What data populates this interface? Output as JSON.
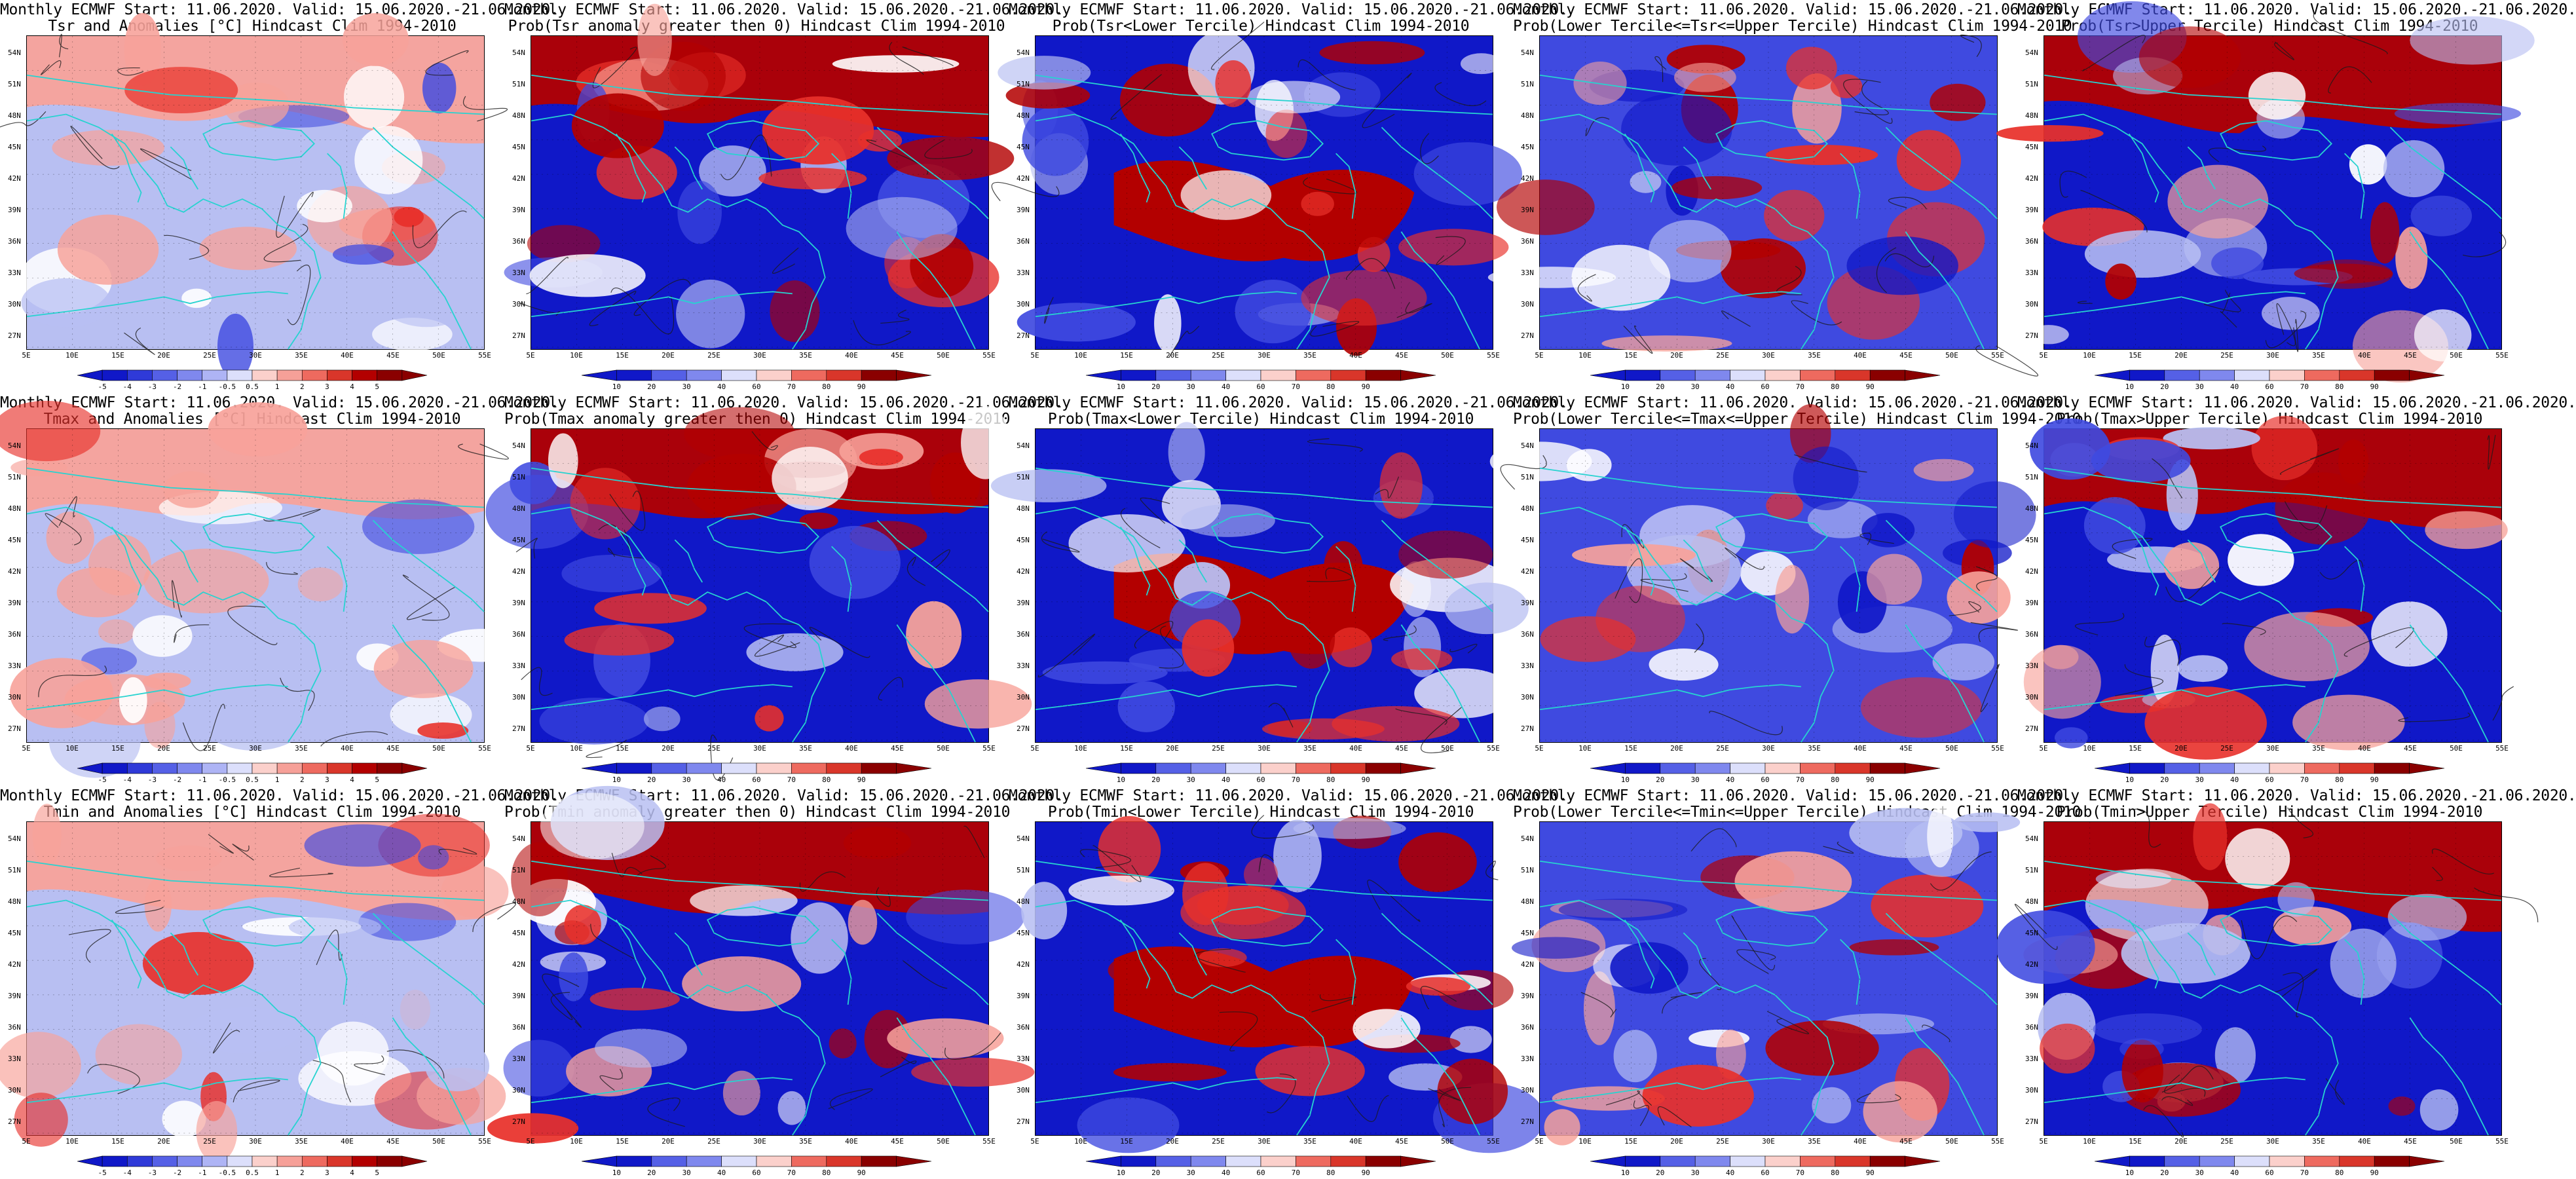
{
  "colors": {
    "red_dark": "#b30000",
    "red": "#e8302a",
    "red_light": "#f7a29a",
    "white": "#ffffff",
    "blue_light": "#b8bff2",
    "blue": "#3f4ae0",
    "blue_dark": "#1018c8",
    "coast": "#27d3d0",
    "contour": "#1a1a1a"
  },
  "grid_labels": {
    "lat": [
      "54N",
      "51N",
      "48N",
      "45N",
      "42N",
      "39N",
      "36N",
      "33N",
      "30N",
      "27N"
    ],
    "lon": [
      "5E",
      "10E",
      "15E",
      "20E",
      "25E",
      "30E",
      "35E",
      "40E",
      "45E",
      "50E",
      "55E"
    ]
  },
  "colorbars": {
    "anomaly": [
      "-5",
      "-4",
      "-3",
      "-2",
      "-1",
      "-0.5",
      "0.5",
      "1",
      "2",
      "3",
      "4",
      "5"
    ],
    "probability": [
      "10",
      "20",
      "30",
      "40",
      "60",
      "70",
      "80",
      "90"
    ]
  },
  "panels": [
    {
      "title_line1": "Monthly ECMWF Start: 11.06.2020. Valid: 15.06.2020.-21.06.2020.",
      "title_line2": "Tsr and Anomalies [°C] Hindcast Clim 1994-2010",
      "palette": "light",
      "cbar": "anomaly",
      "seed": 11
    },
    {
      "title_line1": "Monthly ECMWF Start: 11.06.2020. Valid: 15.06.2020.-21.06.2020.",
      "title_line2": "Prob(Tsr anomaly greater then 0) Hindcast Clim 1994-2010",
      "palette": "strong",
      "cbar": "probability",
      "seed": 12
    },
    {
      "title_line1": "Monthly ECMWF Start: 11.06.2020. Valid: 15.06.2020.-21.06.2020.",
      "title_line2": "Prob(Tsr<Lower Tercile) Hindcast Clim 1994-2010",
      "palette": "strong_inv",
      "cbar": "probability",
      "seed": 13
    },
    {
      "title_line1": "Monthly ECMWF Start: 11.06.2020. Valid: 15.06.2020.-21.06.2020.",
      "title_line2": "Prob(Lower Tercile<=Tsr<=Upper Tercile) Hindcast Clim 1994-2010",
      "palette": "mixed",
      "cbar": "probability",
      "seed": 14
    },
    {
      "title_line1": "Monthly ECMWF Start: 11.06.2020. Valid: 15.06.2020.-21.06.2020.",
      "title_line2": "Prob(Tsr>Upper Tercile) Hindcast Clim 1994-2010",
      "palette": "strong",
      "cbar": "probability",
      "seed": 15
    },
    {
      "title_line1": "Monthly ECMWF Start: 11.06.2020. Valid: 15.06.2020.-21.06.2020.",
      "title_line2": "Tmax and Anomalies [°C] Hindcast Clim 1994-2010",
      "palette": "light",
      "cbar": "anomaly",
      "seed": 21
    },
    {
      "title_line1": "Monthly ECMWF Start: 11.06.2020. Valid: 15.06.2020.-21.06.2020.",
      "title_line2": "Prob(Tmax anomaly greater then 0) Hindcast Clim 1994-2010",
      "palette": "strong",
      "cbar": "probability",
      "seed": 22
    },
    {
      "title_line1": "Monthly ECMWF Start: 11.06.2020. Valid: 15.06.2020.-21.06.2020.",
      "title_line2": "Prob(Tmax<Lower Tercile) Hindcast Clim 1994-2010",
      "palette": "strong_inv",
      "cbar": "probability",
      "seed": 23
    },
    {
      "title_line1": "Monthly ECMWF Start: 11.06.2020. Valid: 15.06.2020.-21.06.2020.",
      "title_line2": "Prob(Lower Tercile<=Tmax<=Upper Tercile) Hindcast Clim 1994-2010",
      "palette": "mixed",
      "cbar": "probability",
      "seed": 24
    },
    {
      "title_line1": "Monthly ECMWF Start: 11.06.2020. Valid: 15.06.2020.-21.06.2020.",
      "title_line2": "Prob(Tmax>Upper Tercile) Hindcast Clim 1994-2010",
      "palette": "strong",
      "cbar": "probability",
      "seed": 25
    },
    {
      "title_line1": "Monthly ECMWF Start: 11.06.2020. Valid: 15.06.2020.-21.06.2020.",
      "title_line2": "Tmin and Anomalies [°C] Hindcast Clim 1994-2010",
      "palette": "light",
      "cbar": "anomaly",
      "seed": 31
    },
    {
      "title_line1": "Monthly ECMWF Start: 11.06.2020. Valid: 15.06.2020.-21.06.2020.",
      "title_line2": "Prob(Tmin anomaly greater then 0) Hindcast Clim 1994-2010",
      "palette": "strong",
      "cbar": "probability",
      "seed": 32
    },
    {
      "title_line1": "Monthly ECMWF Start: 11.06.2020. Valid: 15.06.2020.-21.06.2020.",
      "title_line2": "Prob(Tmin<Lower Tercile) Hindcast Clim 1994-2010",
      "palette": "strong_inv",
      "cbar": "probability",
      "seed": 33
    },
    {
      "title_line1": "Monthly ECMWF Start: 11.06.2020. Valid: 15.06.2020.-21.06.2020.",
      "title_line2": "Prob(Lower Tercile<=Tmin<=Upper Tercile) Hindcast Clim 1994-2010",
      "palette": "mixed",
      "cbar": "probability",
      "seed": 34
    },
    {
      "title_line1": "Monthly ECMWF Start: 11.06.2020. Valid: 15.06.2020.-21.06.2020.",
      "title_line2": "Prob(Tmin>Upper Tercile) Hindcast Clim 1994-2010",
      "palette": "strong",
      "cbar": "probability",
      "seed": 35
    }
  ]
}
